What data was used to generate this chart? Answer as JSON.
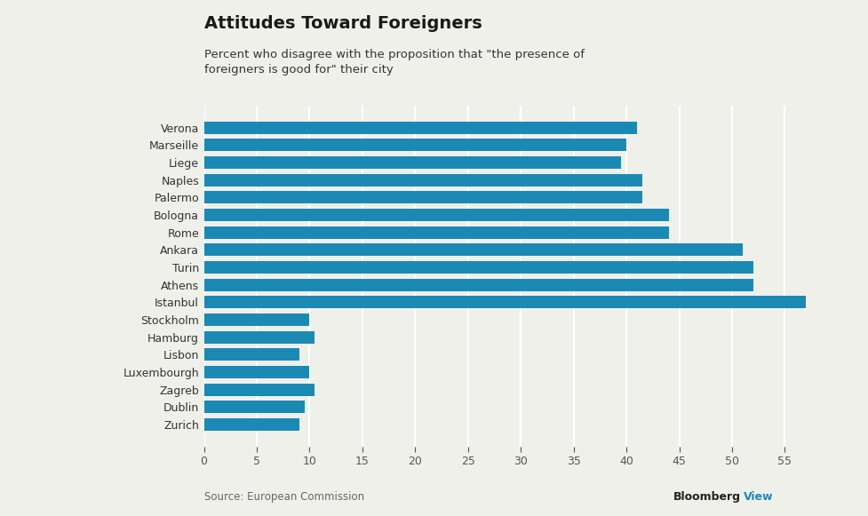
{
  "title": "Attitudes Toward Foreigners",
  "subtitle": "Percent who disagree with the proposition that \"the presence of\nforeigners is good for\" their city",
  "categories": [
    "Verona",
    "Marseille",
    "Liege",
    "Naples",
    "Palermo",
    "Bologna",
    "Rome",
    "Ankara",
    "Turin",
    "Athens",
    "Istanbul",
    "Stockholm",
    "Hamburg",
    "Lisbon",
    "Luxembourgh",
    "Zagreb",
    "Dublin",
    "Zurich"
  ],
  "values": [
    41,
    40,
    39.5,
    41.5,
    41.5,
    44,
    44,
    51,
    52,
    52,
    57,
    10,
    10.5,
    9,
    10,
    10.5,
    9.5,
    9
  ],
  "bar_color": "#1a8ab5",
  "background_color": "#f0f0eb",
  "xticks": [
    0,
    5,
    10,
    15,
    20,
    25,
    30,
    35,
    40,
    45,
    50,
    55
  ],
  "source_text": "Source: European Commission",
  "bloomberg_black": "Bloomberg",
  "bloomberg_blue": "View",
  "title_fontsize": 14,
  "subtitle_fontsize": 9.5,
  "tick_fontsize": 9,
  "label_fontsize": 9
}
